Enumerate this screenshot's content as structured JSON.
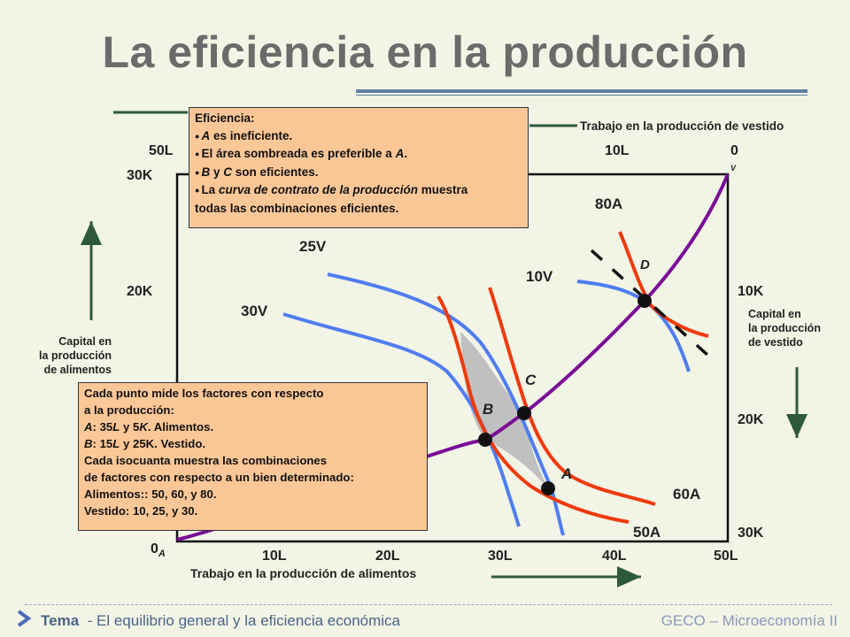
{
  "title": "La eficiencia en la producción",
  "top_axis": {
    "title": "Trabajo en la producción  de vestido",
    "ticks": [
      "50L",
      "10L",
      "0"
    ],
    "origin_sub": "V"
  },
  "bottom_axis": {
    "title": "Trabajo en la producción de alimentos",
    "ticks": [
      "10L",
      "20L",
      "30L",
      "40L",
      "50L"
    ],
    "origin": "0",
    "origin_sub": "A"
  },
  "left_axis": {
    "ticks": [
      "30K",
      "20K"
    ],
    "caption": [
      "Capital en",
      "la producción",
      "de alimentos"
    ]
  },
  "right_axis": {
    "ticks": [
      "10K",
      "20K",
      "30K"
    ],
    "caption": [
      "Capital en",
      "la producción",
      "de vestido"
    ]
  },
  "isoquants": {
    "food": [
      "80A",
      "60A",
      "50A"
    ],
    "clothing": [
      "25V",
      "10V",
      "30V"
    ]
  },
  "points": [
    "A",
    "B",
    "C",
    "D"
  ],
  "efficiency_box": {
    "heading": "Eficiencia:",
    "b1_letter": "A",
    "b1_text": " es ineficiente.",
    "b2_text": "El área sombreada es preferible a ",
    "b2_letter": "A",
    "b2_end": ".",
    "b3_letter": "B",
    "b3_mid": " y ",
    "b3_letter2": "C",
    "b3_text": " son eficientes.",
    "b4_pre": "La ",
    "b4_italic": "curva de contrato de la producción",
    "b4_post": " muestra",
    "b4_line2": "todas las combinaciones eficientes."
  },
  "measure_box": {
    "line1": "Cada punto mide los factores con respecto",
    "line2": "a la producción:",
    "line3_letter": "A",
    "line3_pre": ": 35",
    "line3_L": "L",
    "line3_mid": " y 5",
    "line3_K": "K",
    "line3_end": ". Alimentos.",
    "line4_letter": "B",
    "line4_pre": ": 15",
    "line4_L": "L",
    "line4_end": " y 25K. Vestido.",
    "line5": "Cada isocuanta muestra las combinaciones",
    "line6": "de factores con respecto a un bien determinado:",
    "line7": "Alimentos::  50, 60, y 80.",
    "line8": "Vestido: 10, 25, y 30."
  },
  "footer": {
    "tema": "Tema",
    "subtitle": "  - El equilibrio general y la eficiencia económica",
    "right": "GECO – Microeconomía II"
  },
  "colors": {
    "background": "#f2f4e6",
    "food_isoquant": "#ee3a0c",
    "clothing_isoquant": "#4f7df0",
    "contract_curve": "#7a0d96",
    "shaded_area": "#c0c0c0",
    "callout": "#fcc797",
    "axis_arrow": "#2f5a3a"
  }
}
